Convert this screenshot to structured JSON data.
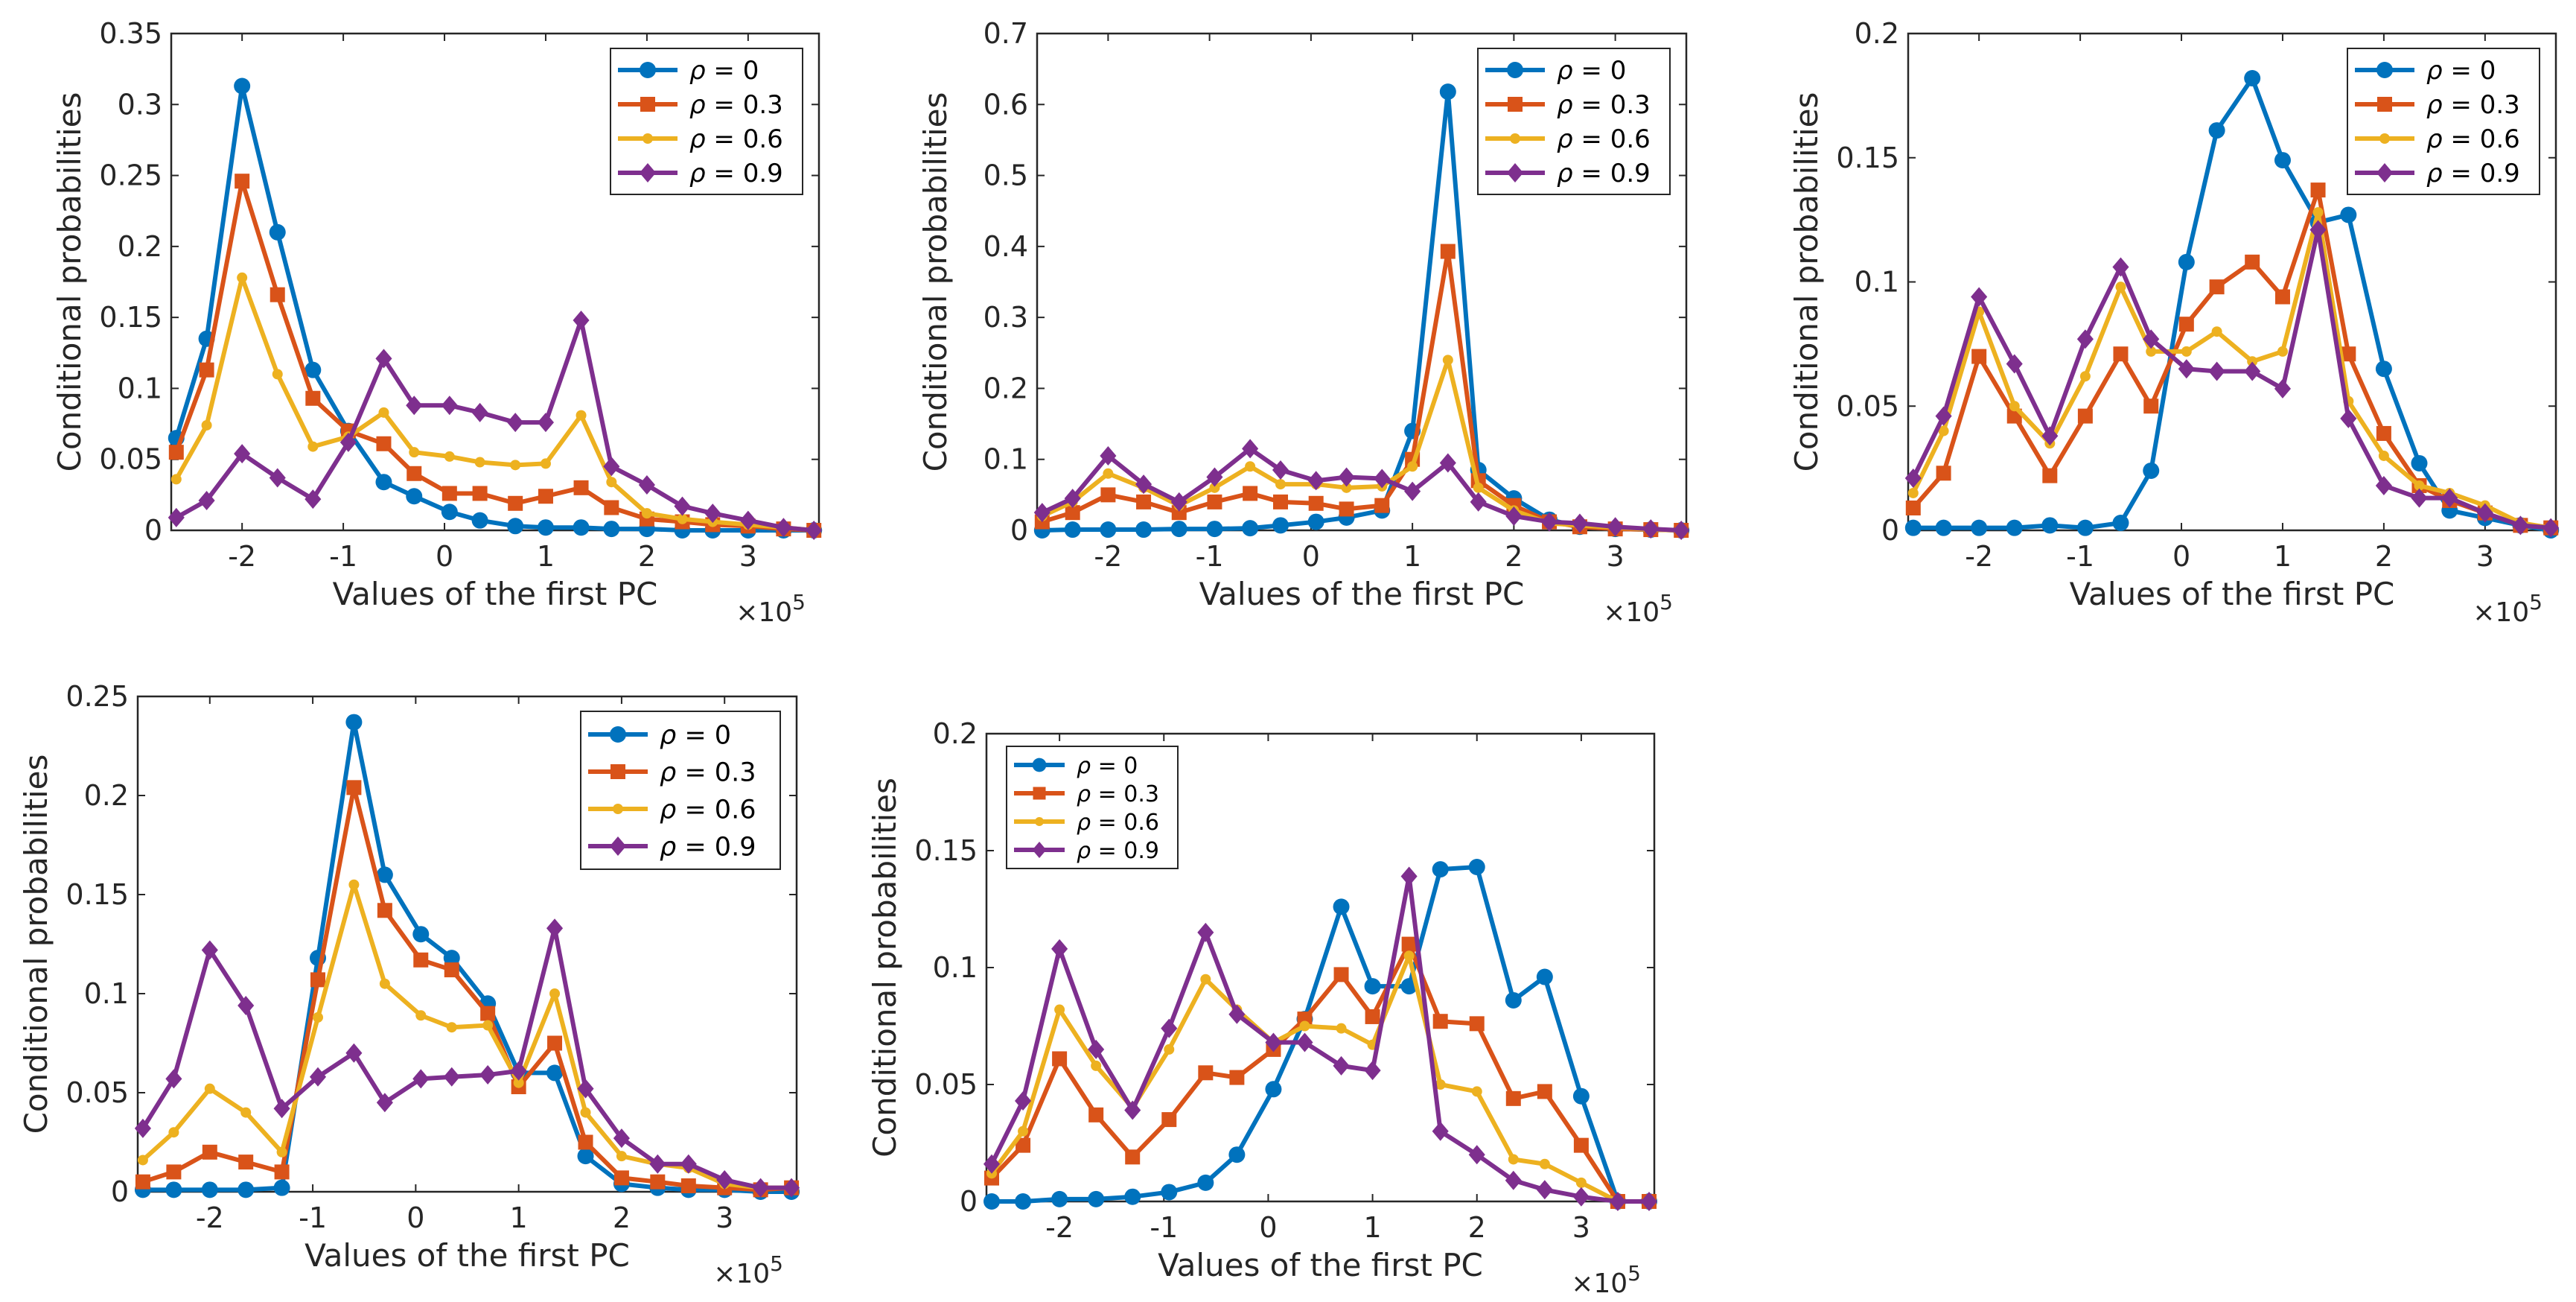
{
  "figure": {
    "series_colors": [
      "#0072BD",
      "#D95319",
      "#EDB120",
      "#7E2F8E"
    ]
  },
  "chart_data": [
    {
      "type": "line",
      "xlabel": "Values of the first PC",
      "ylabel": "Conditional probabilities",
      "x_multiplier": "×10",
      "x_multiplier_exp": "5",
      "xlim": [
        -2.7,
        3.7
      ],
      "ylim": [
        0,
        0.35
      ],
      "xticks": [
        -2,
        -1,
        0,
        1,
        2,
        3
      ],
      "xtick_labels": [
        "-2",
        "-1",
        "0",
        "1",
        "2",
        "3"
      ],
      "yticks": [
        0,
        0.05,
        0.1,
        0.15,
        0.2,
        0.25,
        0.3,
        0.35
      ],
      "ytick_labels": [
        "0",
        "0.05",
        "0.1",
        "0.15",
        "0.2",
        "0.25",
        "0.3",
        "0.35"
      ],
      "legend_position": "top-right",
      "x": [
        -2.65,
        -2.35,
        -2.0,
        -1.65,
        -1.3,
        -0.95,
        -0.6,
        -0.3,
        0.05,
        0.35,
        0.7,
        1.0,
        1.35,
        1.65,
        2.0,
        2.35,
        2.65,
        3.0,
        3.35,
        3.65
      ],
      "series": [
        {
          "name_prefix": "ρ",
          "name_suffix": " = 0",
          "marker": "circle",
          "values": [
            0.065,
            0.135,
            0.313,
            0.21,
            0.113,
            0.07,
            0.034,
            0.024,
            0.013,
            0.007,
            0.003,
            0.002,
            0.002,
            0.001,
            0.001,
            0,
            0,
            0,
            0,
            0
          ]
        },
        {
          "name_prefix": "ρ",
          "name_suffix": " = 0.3",
          "marker": "square",
          "values": [
            0.055,
            0.113,
            0.246,
            0.166,
            0.093,
            0.07,
            0.061,
            0.04,
            0.026,
            0.026,
            0.019,
            0.024,
            0.03,
            0.016,
            0.008,
            0.006,
            0.004,
            0.003,
            0.001,
            0
          ]
        },
        {
          "name_prefix": "ρ",
          "name_suffix": " = 0.6",
          "marker": "dot",
          "values": [
            0.036,
            0.074,
            0.178,
            0.11,
            0.059,
            0.066,
            0.083,
            0.055,
            0.052,
            0.048,
            0.046,
            0.047,
            0.081,
            0.034,
            0.012,
            0.008,
            0.006,
            0.004,
            0.002,
            0
          ]
        },
        {
          "name_prefix": "ρ",
          "name_suffix": " = 0.9",
          "marker": "diamond",
          "values": [
            0.009,
            0.021,
            0.054,
            0.037,
            0.022,
            0.062,
            0.121,
            0.088,
            0.088,
            0.083,
            0.076,
            0.076,
            0.148,
            0.045,
            0.032,
            0.017,
            0.012,
            0.007,
            0.002,
            0
          ]
        }
      ]
    },
    {
      "type": "line",
      "xlabel": "Values of the first PC",
      "ylabel": "Conditional probabilities",
      "x_multiplier": "×10",
      "x_multiplier_exp": "5",
      "xlim": [
        -2.7,
        3.7
      ],
      "ylim": [
        0,
        0.7
      ],
      "xticks": [
        -2,
        -1,
        0,
        1,
        2,
        3
      ],
      "xtick_labels": [
        "-2",
        "-1",
        "0",
        "1",
        "2",
        "3"
      ],
      "yticks": [
        0,
        0.1,
        0.2,
        0.3,
        0.4,
        0.5,
        0.6,
        0.7
      ],
      "ytick_labels": [
        "0",
        "0.1",
        "0.2",
        "0.3",
        "0.4",
        "0.5",
        "0.6",
        "0.7"
      ],
      "legend_position": "top-right",
      "x": [
        -2.65,
        -2.35,
        -2.0,
        -1.65,
        -1.3,
        -0.95,
        -0.6,
        -0.3,
        0.05,
        0.35,
        0.7,
        1.0,
        1.35,
        1.65,
        2.0,
        2.35,
        2.65,
        3.0,
        3.35,
        3.65
      ],
      "series": [
        {
          "name_prefix": "ρ",
          "name_suffix": " = 0",
          "marker": "circle",
          "values": [
            0.0,
            0.001,
            0.001,
            0.001,
            0.002,
            0.002,
            0.003,
            0.007,
            0.012,
            0.018,
            0.028,
            0.14,
            0.618,
            0.085,
            0.045,
            0.015,
            0.005,
            0.002,
            0.001,
            0
          ]
        },
        {
          "name_prefix": "ρ",
          "name_suffix": " = 0.3",
          "marker": "square",
          "values": [
            0.012,
            0.025,
            0.05,
            0.04,
            0.025,
            0.04,
            0.052,
            0.04,
            0.038,
            0.03,
            0.035,
            0.1,
            0.393,
            0.07,
            0.035,
            0.012,
            0.005,
            0.002,
            0.001,
            0
          ]
        },
        {
          "name_prefix": "ρ",
          "name_suffix": " = 0.6",
          "marker": "dot",
          "values": [
            0.02,
            0.04,
            0.08,
            0.06,
            0.035,
            0.06,
            0.09,
            0.065,
            0.065,
            0.06,
            0.062,
            0.09,
            0.24,
            0.06,
            0.028,
            0.01,
            0.007,
            0.004,
            0.001,
            0
          ]
        },
        {
          "name_prefix": "ρ",
          "name_suffix": " = 0.9",
          "marker": "diamond",
          "values": [
            0.025,
            0.045,
            0.105,
            0.065,
            0.04,
            0.075,
            0.115,
            0.085,
            0.07,
            0.075,
            0.073,
            0.055,
            0.095,
            0.04,
            0.02,
            0.012,
            0.01,
            0.005,
            0.002,
            0
          ]
        }
      ]
    },
    {
      "type": "line",
      "xlabel": "Values of the first PC",
      "ylabel": "Conditional probabilities",
      "x_multiplier": "×10",
      "x_multiplier_exp": "5",
      "xlim": [
        -2.7,
        3.7
      ],
      "ylim": [
        0,
        0.2
      ],
      "xticks": [
        -2,
        -1,
        0,
        1,
        2,
        3
      ],
      "xtick_labels": [
        "-2",
        "-1",
        "0",
        "1",
        "2",
        "3"
      ],
      "yticks": [
        0,
        0.05,
        0.1,
        0.15,
        0.2
      ],
      "ytick_labels": [
        "0",
        "0.05",
        "0.1",
        "0.15",
        "0.2"
      ],
      "legend_position": "top-right",
      "x": [
        -2.65,
        -2.35,
        -2.0,
        -1.65,
        -1.3,
        -0.95,
        -0.6,
        -0.3,
        0.05,
        0.35,
        0.7,
        1.0,
        1.35,
        1.65,
        2.0,
        2.35,
        2.65,
        3.0,
        3.35,
        3.65
      ],
      "series": [
        {
          "name_prefix": "ρ",
          "name_suffix": " = 0",
          "marker": "circle",
          "values": [
            0.001,
            0.001,
            0.001,
            0.001,
            0.002,
            0.001,
            0.003,
            0.024,
            0.108,
            0.161,
            0.182,
            0.149,
            0.124,
            0.127,
            0.065,
            0.027,
            0.008,
            0.005,
            0.002,
            0
          ]
        },
        {
          "name_prefix": "ρ",
          "name_suffix": " = 0.3",
          "marker": "square",
          "values": [
            0.009,
            0.023,
            0.07,
            0.046,
            0.022,
            0.046,
            0.071,
            0.05,
            0.083,
            0.098,
            0.108,
            0.094,
            0.137,
            0.071,
            0.039,
            0.018,
            0.012,
            0.007,
            0.002,
            0.001
          ]
        },
        {
          "name_prefix": "ρ",
          "name_suffix": " = 0.6",
          "marker": "dot",
          "values": [
            0.015,
            0.04,
            0.088,
            0.05,
            0.035,
            0.062,
            0.098,
            0.072,
            0.072,
            0.08,
            0.068,
            0.072,
            0.128,
            0.052,
            0.03,
            0.018,
            0.015,
            0.01,
            0.003,
            0.001
          ]
        },
        {
          "name_prefix": "ρ",
          "name_suffix": " = 0.9",
          "marker": "diamond",
          "values": [
            0.021,
            0.046,
            0.094,
            0.067,
            0.038,
            0.077,
            0.106,
            0.077,
            0.065,
            0.064,
            0.064,
            0.057,
            0.121,
            0.045,
            0.018,
            0.013,
            0.013,
            0.007,
            0.002,
            0.001
          ]
        }
      ]
    },
    {
      "type": "line",
      "xlabel": "Values of the first PC",
      "ylabel": "Conditional probabilities",
      "x_multiplier": "×10",
      "x_multiplier_exp": "5",
      "xlim": [
        -2.7,
        3.7
      ],
      "ylim": [
        0,
        0.25
      ],
      "xticks": [
        -2,
        -1,
        0,
        1,
        2,
        3
      ],
      "xtick_labels": [
        "-2",
        "-1",
        "0",
        "1",
        "2",
        "3"
      ],
      "yticks": [
        0,
        0.05,
        0.1,
        0.15,
        0.2,
        0.25
      ],
      "ytick_labels": [
        "0",
        "0.05",
        "0.1",
        "0.15",
        "0.2",
        "0.25"
      ],
      "legend_position": "top-right",
      "x": [
        -2.65,
        -2.35,
        -2.0,
        -1.65,
        -1.3,
        -0.95,
        -0.6,
        -0.3,
        0.05,
        0.35,
        0.7,
        1.0,
        1.35,
        1.65,
        2.0,
        2.35,
        2.65,
        3.0,
        3.35,
        3.65
      ],
      "series": [
        {
          "name_prefix": "ρ",
          "name_suffix": " = 0",
          "marker": "circle",
          "values": [
            0.001,
            0.001,
            0.001,
            0.001,
            0.002,
            0.118,
            0.237,
            0.16,
            0.13,
            0.118,
            0.095,
            0.06,
            0.06,
            0.018,
            0.004,
            0.002,
            0.001,
            0.001,
            0,
            0
          ]
        },
        {
          "name_prefix": "ρ",
          "name_suffix": " = 0.3",
          "marker": "square",
          "values": [
            0.005,
            0.01,
            0.02,
            0.015,
            0.01,
            0.107,
            0.204,
            0.142,
            0.117,
            0.112,
            0.09,
            0.053,
            0.075,
            0.025,
            0.007,
            0.005,
            0.003,
            0.002,
            0.001,
            0.002
          ]
        },
        {
          "name_prefix": "ρ",
          "name_suffix": " = 0.6",
          "marker": "dot",
          "values": [
            0.016,
            0.03,
            0.052,
            0.04,
            0.02,
            0.088,
            0.155,
            0.105,
            0.089,
            0.083,
            0.084,
            0.055,
            0.1,
            0.04,
            0.018,
            0.014,
            0.012,
            0.004,
            0.002,
            0.002
          ]
        },
        {
          "name_prefix": "ρ",
          "name_suffix": " = 0.9",
          "marker": "diamond",
          "values": [
            0.032,
            0.057,
            0.122,
            0.094,
            0.042,
            0.058,
            0.07,
            0.045,
            0.057,
            0.058,
            0.059,
            0.061,
            0.133,
            0.052,
            0.027,
            0.014,
            0.014,
            0.006,
            0.002,
            0.002
          ]
        }
      ]
    },
    {
      "type": "line",
      "xlabel": "Values of the first PC",
      "ylabel": "Conditional probabilities",
      "x_multiplier": "×10",
      "x_multiplier_exp": "5",
      "xlim": [
        -2.7,
        3.7
      ],
      "ylim": [
        0,
        0.2
      ],
      "xticks": [
        -2,
        -1,
        0,
        1,
        2,
        3
      ],
      "xtick_labels": [
        "-2",
        "-1",
        "0",
        "1",
        "2",
        "3"
      ],
      "yticks": [
        0,
        0.05,
        0.1,
        0.15,
        0.2
      ],
      "ytick_labels": [
        "0",
        "0.05",
        "0.1",
        "0.15",
        "0.2"
      ],
      "legend_position": "top-left",
      "x": [
        -2.65,
        -2.35,
        -2.0,
        -1.65,
        -1.3,
        -0.95,
        -0.6,
        -0.3,
        0.05,
        0.35,
        0.7,
        1.0,
        1.35,
        1.65,
        2.0,
        2.35,
        2.65,
        3.0,
        3.35,
        3.65
      ],
      "series": [
        {
          "name_prefix": "ρ",
          "name_suffix": " = 0",
          "marker": "circle",
          "values": [
            0.0,
            0.0,
            0.001,
            0.001,
            0.002,
            0.004,
            0.008,
            0.02,
            0.048,
            0.078,
            0.126,
            0.092,
            0.092,
            0.142,
            0.143,
            0.086,
            0.096,
            0.045,
            0.0,
            0.0
          ]
        },
        {
          "name_prefix": "ρ",
          "name_suffix": " = 0.3",
          "marker": "square",
          "values": [
            0.01,
            0.024,
            0.061,
            0.037,
            0.019,
            0.035,
            0.055,
            0.053,
            0.065,
            0.078,
            0.097,
            0.079,
            0.11,
            0.077,
            0.076,
            0.044,
            0.047,
            0.024,
            0.0,
            0.0
          ]
        },
        {
          "name_prefix": "ρ",
          "name_suffix": " = 0.6",
          "marker": "dot",
          "values": [
            0.012,
            0.03,
            0.082,
            0.058,
            0.04,
            0.065,
            0.095,
            0.082,
            0.068,
            0.075,
            0.074,
            0.067,
            0.105,
            0.05,
            0.047,
            0.018,
            0.016,
            0.008,
            0.0,
            0.0
          ]
        },
        {
          "name_prefix": "ρ",
          "name_suffix": " = 0.9",
          "marker": "diamond",
          "values": [
            0.016,
            0.043,
            0.108,
            0.065,
            0.039,
            0.074,
            0.115,
            0.08,
            0.068,
            0.068,
            0.058,
            0.056,
            0.139,
            0.03,
            0.02,
            0.009,
            0.005,
            0.002,
            0.0,
            0.0
          ]
        }
      ]
    }
  ]
}
